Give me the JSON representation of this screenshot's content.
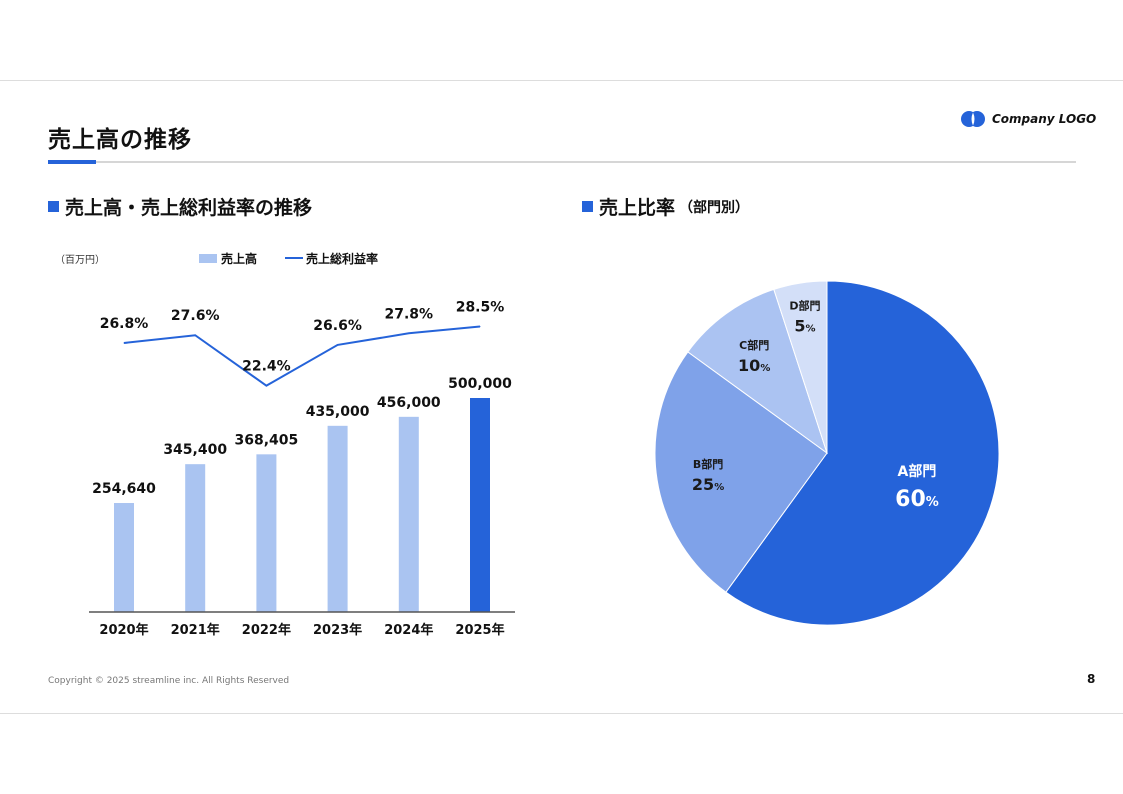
{
  "logo": {
    "text": "Company LOGO"
  },
  "page": {
    "title": "売上高の推移",
    "number": "8"
  },
  "footer": {
    "copyright": "Copyright © 2025 streamline inc. All Rights Reserved"
  },
  "left_section": {
    "title": "売上高・売上総利益率の推移"
  },
  "right_section": {
    "title": "売上比率",
    "subtitle": "（部門別）"
  },
  "colors": {
    "accent": "#2563d9",
    "bar_light": "#aac4f1",
    "line": "#2563d9"
  },
  "chart_data": [
    {
      "type": "bar",
      "unit_label": "（百万円）",
      "categories": [
        "2020年",
        "2021年",
        "2022年",
        "2023年",
        "2024年",
        "2025年"
      ],
      "series": [
        {
          "name": "売上高",
          "type": "bar",
          "values": [
            254640,
            345400,
            368405,
            435000,
            456000,
            500000
          ],
          "labels": [
            "254,640",
            "345,400",
            "368,405",
            "435,000",
            "456,000",
            "500,000"
          ],
          "highlight_index": 5
        },
        {
          "name": "売上総利益率",
          "type": "line",
          "values": [
            26.8,
            27.6,
            22.4,
            26.6,
            27.8,
            28.5
          ],
          "labels": [
            "26.8%",
            "27.6%",
            "22.4%",
            "26.6%",
            "27.8%",
            "28.5%"
          ]
        }
      ],
      "legend": "top"
    },
    {
      "type": "pie",
      "slices": [
        {
          "label": "A部門",
          "value": 60,
          "value_label": "60",
          "unit": "%",
          "color": "#2563d9"
        },
        {
          "label": "B部門",
          "value": 25,
          "value_label": "25",
          "unit": "%",
          "color": "#7fa2e9"
        },
        {
          "label": "C部門",
          "value": 10,
          "value_label": "10",
          "unit": "%",
          "color": "#abc3f2"
        },
        {
          "label": "D部門",
          "value": 5,
          "value_label": "5",
          "unit": "%",
          "color": "#d3dff8"
        }
      ]
    }
  ]
}
